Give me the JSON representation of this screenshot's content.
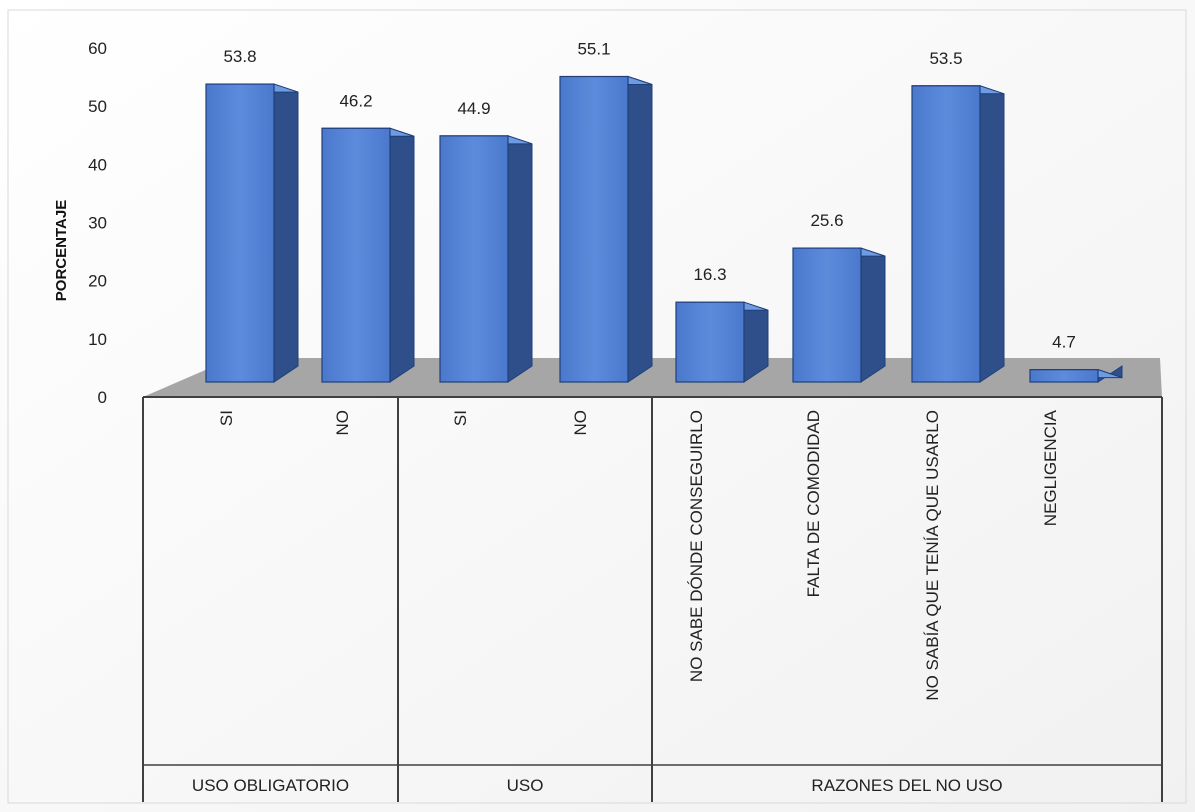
{
  "chart_data": {
    "type": "bar",
    "ylabel": "PORCENTAJE",
    "ylim": [
      0,
      60
    ],
    "yticks": [
      0,
      10,
      20,
      30,
      40,
      50,
      60
    ],
    "groups": [
      {
        "name": "USO OBLIGATORIO",
        "categories": [
          "SI",
          "NO"
        ],
        "values": [
          53.8,
          46.2
        ]
      },
      {
        "name": "USO",
        "categories": [
          "SI",
          "NO"
        ],
        "values": [
          44.9,
          55.1
        ]
      },
      {
        "name": "RAZONES DEL NO USO",
        "categories": [
          "NO SABE DÓNDE CONSEGUIRLO",
          "FALTA DE COMODIDAD",
          "NO SABÍA QUE TENÍA QUE USARLO",
          "NEGLIGENCIA"
        ],
        "values": [
          16.3,
          25.6,
          53.5,
          4.7
        ]
      }
    ],
    "bar_color": "#4472C4"
  }
}
